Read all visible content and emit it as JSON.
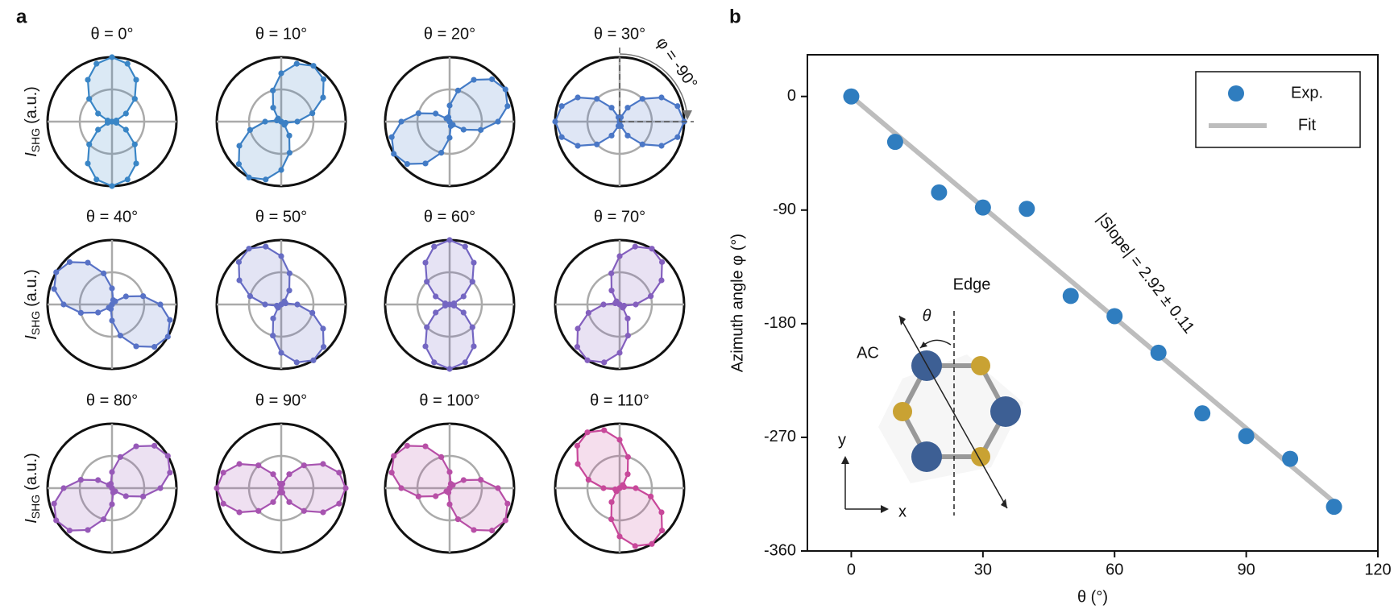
{
  "chart_data": [
    {
      "type": "polar",
      "panel_label": "a",
      "angles": [
        0,
        15,
        30,
        45,
        60,
        75,
        90,
        105,
        120,
        135,
        150,
        165,
        180,
        195,
        210,
        225,
        240,
        255,
        270,
        285,
        300,
        315,
        330,
        345
      ],
      "rlim": [
        0,
        1
      ],
      "rgrid": [
        0.5
      ],
      "ylabel": {
        "symbol": "I",
        "subscript": "SHG",
        "unit": "(a.u.)"
      },
      "plots": [
        {
          "title": "θ = 0°",
          "color": "#3a86c6",
          "values": [
            0,
            0.07,
            0.25,
            0.5,
            0.75,
            0.93,
            1,
            0.93,
            0.75,
            0.5,
            0.25,
            0.07,
            0,
            0.07,
            0.25,
            0.5,
            0.75,
            0.93,
            1,
            0.93,
            0.75,
            0.5,
            0.25,
            0.07
          ]
        },
        {
          "title": "θ = 10°",
          "color": "#3c80c4",
          "values": [
            0.25,
            0.5,
            0.75,
            0.93,
            1,
            0.93,
            0.75,
            0.5,
            0.25,
            0.07,
            0,
            0.07,
            0.25,
            0.5,
            0.75,
            0.93,
            1,
            0.93,
            0.75,
            0.5,
            0.25,
            0.07,
            0,
            0.07
          ]
        },
        {
          "title": "θ = 20°",
          "color": "#437bc6",
          "values": [
            0.75,
            0.93,
            1,
            0.93,
            0.75,
            0.5,
            0.25,
            0.07,
            0,
            0.07,
            0.25,
            0.5,
            0.75,
            0.93,
            1,
            0.93,
            0.75,
            0.5,
            0.25,
            0.07,
            0,
            0.07,
            0.25,
            0.5
          ]
        },
        {
          "title": "θ = 30°",
          "color": "#4b77c6",
          "annotation": "φ = -90°",
          "values": [
            1,
            0.93,
            0.75,
            0.5,
            0.25,
            0.07,
            0,
            0.07,
            0.25,
            0.5,
            0.75,
            0.93,
            1,
            0.93,
            0.75,
            0.5,
            0.25,
            0.07,
            0,
            0.07,
            0.25,
            0.5,
            0.75,
            0.93
          ]
        },
        {
          "title": "θ = 40°",
          "color": "#5872c6",
          "values": [
            0.75,
            0.5,
            0.25,
            0.07,
            0,
            0.07,
            0.25,
            0.5,
            0.75,
            0.93,
            1,
            0.93,
            0.75,
            0.5,
            0.25,
            0.07,
            0,
            0.07,
            0.25,
            0.5,
            0.75,
            0.93,
            1,
            0.93
          ]
        },
        {
          "title": "θ = 50°",
          "color": "#666cc4",
          "values": [
            0.25,
            0.07,
            0,
            0.07,
            0.25,
            0.5,
            0.75,
            0.93,
            1,
            0.93,
            0.75,
            0.5,
            0.25,
            0.07,
            0,
            0.07,
            0.25,
            0.5,
            0.75,
            0.93,
            1,
            0.93,
            0.75,
            0.5
          ]
        },
        {
          "title": "θ = 60°",
          "color": "#7466c2",
          "values": [
            0,
            0.07,
            0.25,
            0.5,
            0.75,
            0.93,
            1,
            0.93,
            0.75,
            0.5,
            0.25,
            0.07,
            0,
            0.07,
            0.25,
            0.5,
            0.75,
            0.93,
            1,
            0.93,
            0.75,
            0.5,
            0.25,
            0.07
          ]
        },
        {
          "title": "θ = 70°",
          "color": "#845fbe",
          "values": [
            0.25,
            0.5,
            0.75,
            0.93,
            1,
            0.93,
            0.75,
            0.5,
            0.25,
            0.07,
            0,
            0.07,
            0.25,
            0.5,
            0.75,
            0.93,
            1,
            0.93,
            0.75,
            0.5,
            0.25,
            0.07,
            0,
            0.07
          ]
        },
        {
          "title": "θ = 80°",
          "color": "#9659b8",
          "values": [
            0.75,
            0.93,
            1,
            0.93,
            0.75,
            0.5,
            0.25,
            0.07,
            0,
            0.07,
            0.25,
            0.5,
            0.75,
            0.93,
            1,
            0.93,
            0.75,
            0.5,
            0.25,
            0.07,
            0,
            0.07,
            0.25,
            0.5
          ]
        },
        {
          "title": "θ = 90°",
          "color": "#a754b0",
          "values": [
            1,
            0.93,
            0.75,
            0.5,
            0.25,
            0.07,
            0,
            0.07,
            0.25,
            0.5,
            0.75,
            0.93,
            1,
            0.93,
            0.75,
            0.5,
            0.25,
            0.07,
            0,
            0.07,
            0.25,
            0.5,
            0.75,
            0.93
          ]
        },
        {
          "title": "θ = 100°",
          "color": "#b84fa6",
          "values": [
            0.75,
            0.5,
            0.25,
            0.07,
            0,
            0.07,
            0.25,
            0.5,
            0.75,
            0.93,
            1,
            0.93,
            0.75,
            0.5,
            0.25,
            0.07,
            0,
            0.07,
            0.25,
            0.5,
            0.75,
            0.93,
            1,
            0.93
          ]
        },
        {
          "title": "θ = 110°",
          "color": "#c8489a",
          "values": [
            0.25,
            0.07,
            0,
            0.07,
            0.25,
            0.5,
            0.75,
            0.93,
            1,
            0.93,
            0.75,
            0.5,
            0.25,
            0.07,
            0,
            0.07,
            0.25,
            0.5,
            0.75,
            0.93,
            1,
            0.93,
            0.75,
            0.5
          ]
        }
      ]
    },
    {
      "type": "scatter",
      "panel_label": "b",
      "xlabel": "θ (°)",
      "ylabel": "Azimuth angle φ (°)",
      "xlim": [
        -10,
        120
      ],
      "ylim": [
        -360,
        33
      ],
      "xticks": [
        0,
        30,
        60,
        90,
        120
      ],
      "yticks": [
        -360,
        -270,
        -180,
        -90,
        0
      ],
      "annotation": "|Slope| = 2.92 ± 0.11",
      "legend": "upper right",
      "series": [
        {
          "name": "Exp.",
          "style": "marker",
          "color": "#2f7dbf",
          "x": [
            0,
            10,
            20,
            30,
            40,
            50,
            60,
            70,
            80,
            90,
            100,
            110
          ],
          "values": [
            0,
            -36,
            -76,
            -88,
            -89,
            -158,
            -174,
            -203,
            -251,
            -269,
            -287,
            -325
          ]
        },
        {
          "name": "Fit",
          "style": "line",
          "color": "#bdbdbd",
          "x": [
            0,
            110
          ],
          "values": [
            0,
            -321.2
          ]
        }
      ],
      "inset_labels": {
        "edge": "Edge",
        "angle": "θ",
        "ac": "AC",
        "y": "y",
        "x": "x"
      }
    }
  ]
}
